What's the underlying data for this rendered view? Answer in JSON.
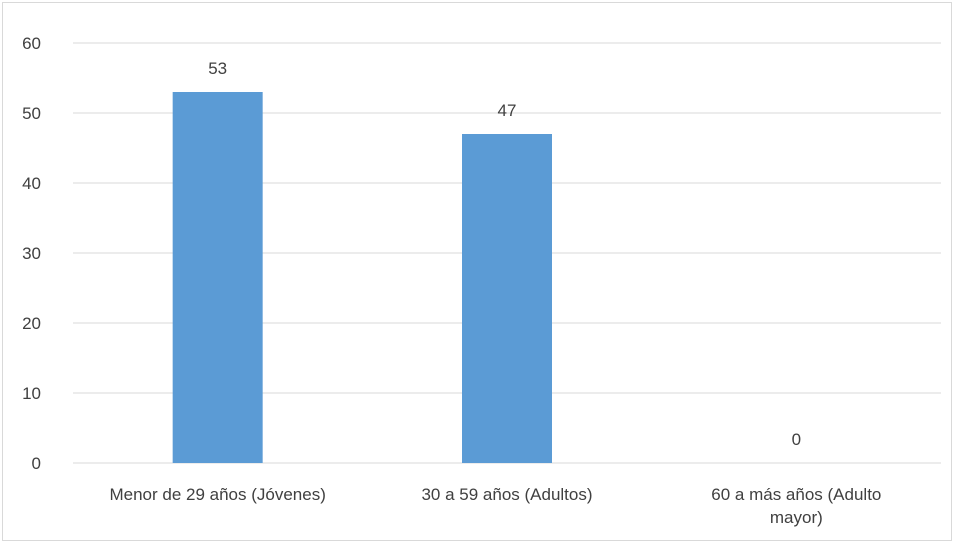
{
  "chart_data": {
    "type": "bar",
    "categories": [
      [
        "Menor de 29 años  (Jóvenes)"
      ],
      [
        "30 a 59 años (Adultos)"
      ],
      [
        "60 a más años (Adulto",
        "mayor)"
      ]
    ],
    "values": [
      53,
      47,
      0
    ],
    "data_labels": [
      "53",
      "47",
      "0"
    ],
    "y_ticks": [
      "0",
      "10",
      "20",
      "30",
      "40",
      "50",
      "60"
    ],
    "ylim": [
      0,
      60
    ],
    "grid": true,
    "bar_color": "#5b9bd5",
    "grid_color": "#d9d9d9"
  }
}
